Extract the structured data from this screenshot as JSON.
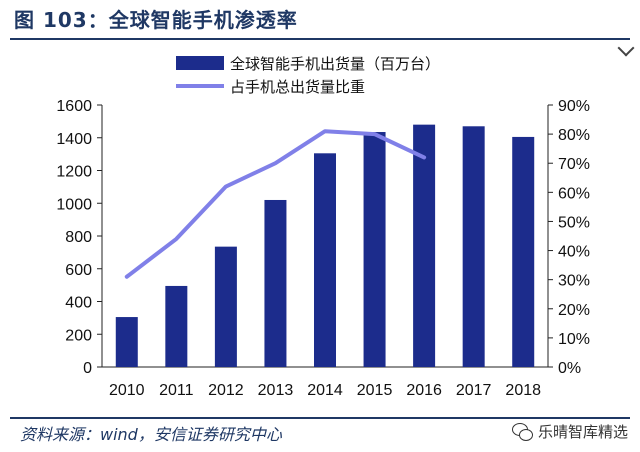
{
  "header": {
    "title": "图 103：全球智能手机渗透率"
  },
  "footer": {
    "source": "资料来源：wind，安信证券研究中心",
    "watermark": "乐晴智库精选"
  },
  "icons": {
    "watermark_icon": "wechat-icon"
  },
  "colors": {
    "bar": "#1c2c8c",
    "line": "#8080e8",
    "title": "#1f3864"
  },
  "chart_data": {
    "type": "bar",
    "categories": [
      "2010",
      "2011",
      "2012",
      "2013",
      "2014",
      "2015",
      "2016",
      "2017",
      "2018"
    ],
    "series": [
      {
        "name": "全球智能手机出货量（百万台）",
        "type": "bar",
        "axis": "left",
        "values": [
          305,
          495,
          735,
          1020,
          1305,
          1435,
          1480,
          1470,
          1405
        ]
      },
      {
        "name": "占手机总出货量比重",
        "type": "line",
        "axis": "right",
        "values": [
          0.31,
          0.44,
          0.62,
          0.7,
          0.81,
          0.8,
          0.72,
          null,
          null
        ]
      }
    ],
    "ylim_left": [
      0,
      1600
    ],
    "yticks_left": [
      "0",
      "200",
      "400",
      "600",
      "800",
      "1000",
      "1200",
      "1400",
      "1600"
    ],
    "ylim_right": [
      0,
      0.9
    ],
    "yticks_right": [
      "0%",
      "10%",
      "20%",
      "30%",
      "40%",
      "50%",
      "60%",
      "70%",
      "80%",
      "90%"
    ],
    "grid": false,
    "legend_position": "top"
  }
}
